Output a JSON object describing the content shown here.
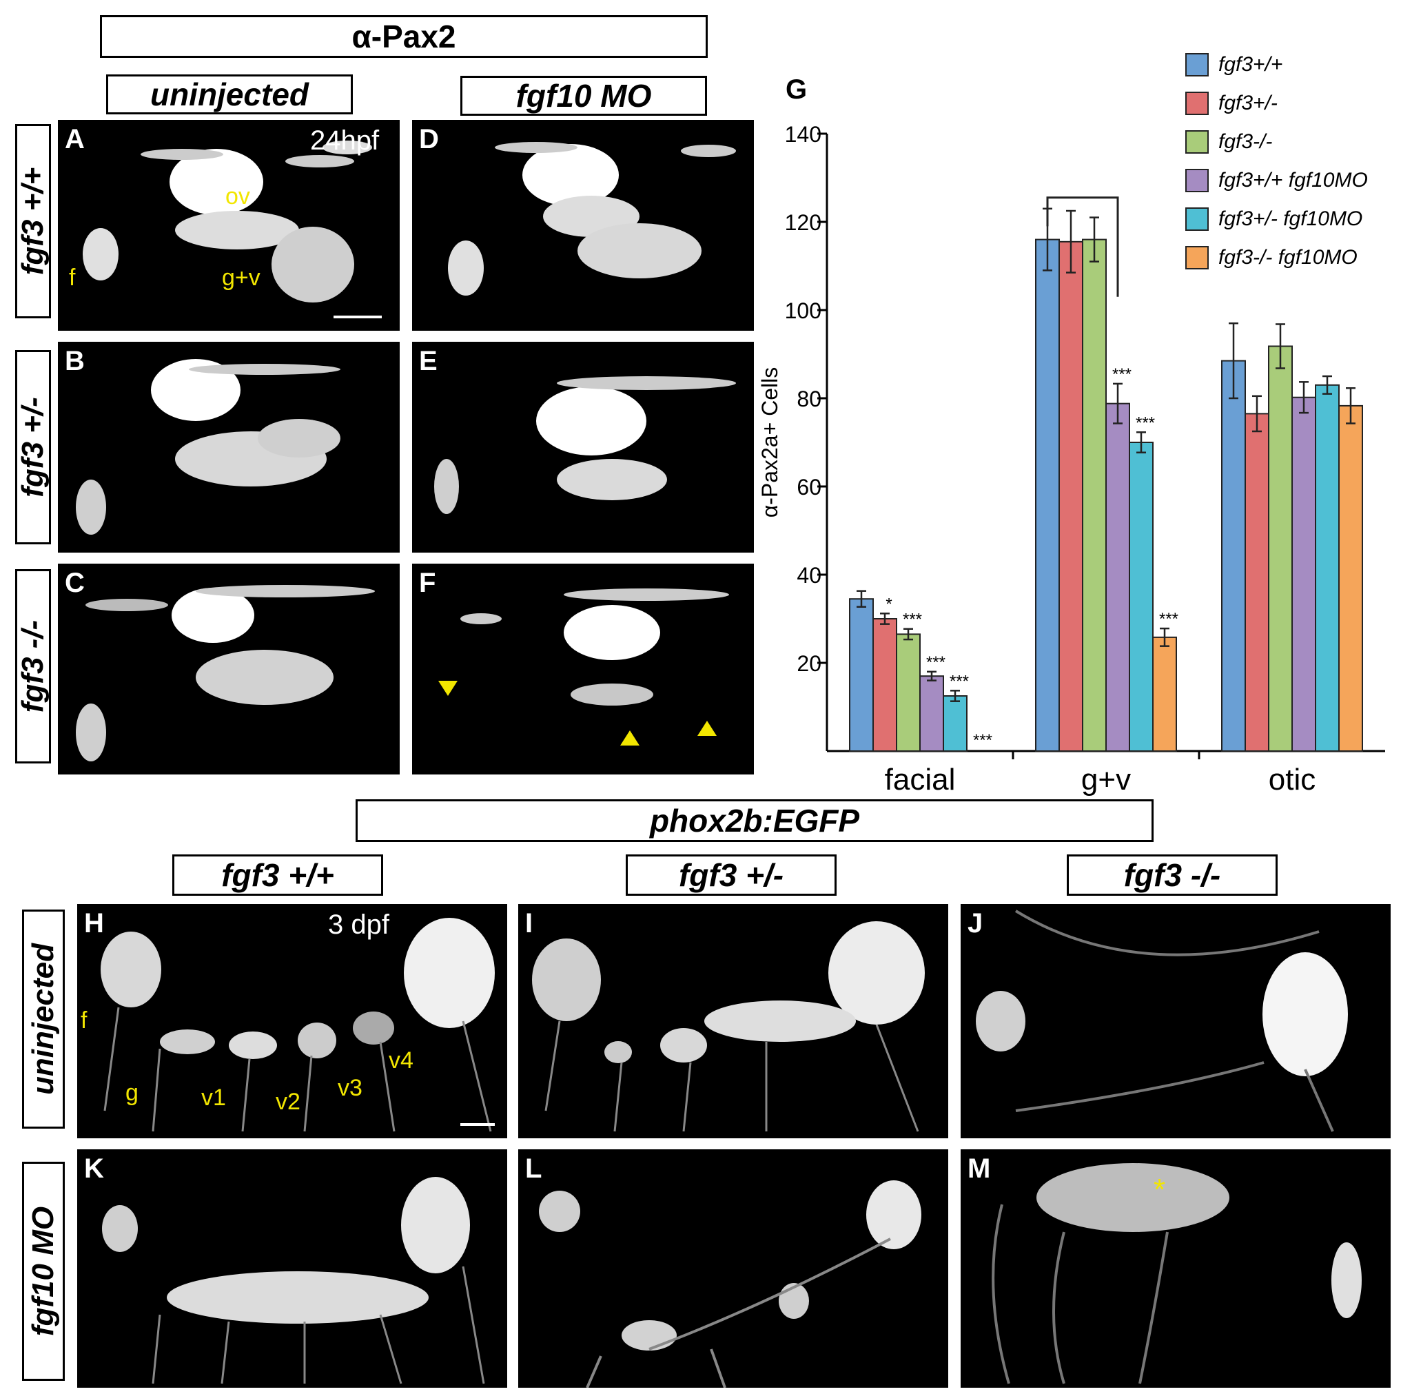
{
  "headers": {
    "pax2": "α-Pax2",
    "uninjected": "uninjected",
    "fgf10mo": "fgf10 MO",
    "phox": "phox2b:EGFP",
    "col_wt": "fgf3 +/+",
    "col_het": "fgf3 +/-",
    "col_mut": "fgf3 -/-"
  },
  "row_labels": {
    "top_wt": "fgf3 +/+",
    "top_het": "fgf3 +/-",
    "top_mut": "fgf3 -/-",
    "bottom_uninj": "uninjected",
    "bottom_mo": "fgf10 MO"
  },
  "panels": {
    "A": "A",
    "B": "B",
    "C": "C",
    "D": "D",
    "E": "E",
    "F": "F",
    "G": "G",
    "H": "H",
    "I": "I",
    "J": "J",
    "K": "K",
    "L": "L",
    "M": "M"
  },
  "annotations": {
    "time_top": "24hpf",
    "time_bottom": "3 dpf",
    "ov": "ov",
    "f": "f",
    "gv": "g+v",
    "f2": "f",
    "g": "g",
    "v1": "v1",
    "v2": "v2",
    "v3": "v3",
    "v4": "v4",
    "asterisk": "*"
  },
  "chart_data": {
    "type": "bar",
    "ylabel": "α-Pax2a+ Cells",
    "ylim": [
      0,
      140
    ],
    "yticks": [
      20,
      40,
      60,
      80,
      100,
      120,
      140
    ],
    "categories": [
      "facial",
      "g+v",
      "otic"
    ],
    "legend_position": "top-right",
    "series": [
      {
        "name": "fgf3+/+",
        "color": "#6a9fd4",
        "values": [
          34.5,
          116,
          88.5
        ],
        "errors": [
          1.8,
          7,
          8.5
        ],
        "sig": [
          "",
          "",
          ""
        ]
      },
      {
        "name": "fgf3+/-",
        "color": "#e07070",
        "values": [
          30,
          115.5,
          76.5
        ],
        "errors": [
          1.2,
          7,
          4
        ],
        "sig": [
          "*",
          "",
          ""
        ]
      },
      {
        "name": "fgf3-/-",
        "color": "#a9cc7a",
        "values": [
          26.5,
          116,
          91.8
        ],
        "errors": [
          1.2,
          5,
          5
        ],
        "sig": [
          "***",
          "",
          ""
        ]
      },
      {
        "name": "fgf3+/+ fgf10MO",
        "color": "#a58cc2",
        "values": [
          17,
          78.8,
          80.2
        ],
        "errors": [
          1,
          4.5,
          3.5
        ],
        "sig": [
          "***",
          "***",
          ""
        ]
      },
      {
        "name": "fgf3+/- fgf10MO",
        "color": "#4fbfd4",
        "values": [
          12.5,
          70,
          83
        ],
        "errors": [
          1.2,
          2.3,
          2
        ],
        "sig": [
          "***",
          "***",
          ""
        ]
      },
      {
        "name": "fgf3-/- fgf10MO",
        "color": "#f5a55a",
        "values": [
          0,
          25.8,
          78.3
        ],
        "errors": [
          0,
          2,
          4
        ],
        "sig": [
          "***",
          "***",
          ""
        ]
      }
    ]
  }
}
